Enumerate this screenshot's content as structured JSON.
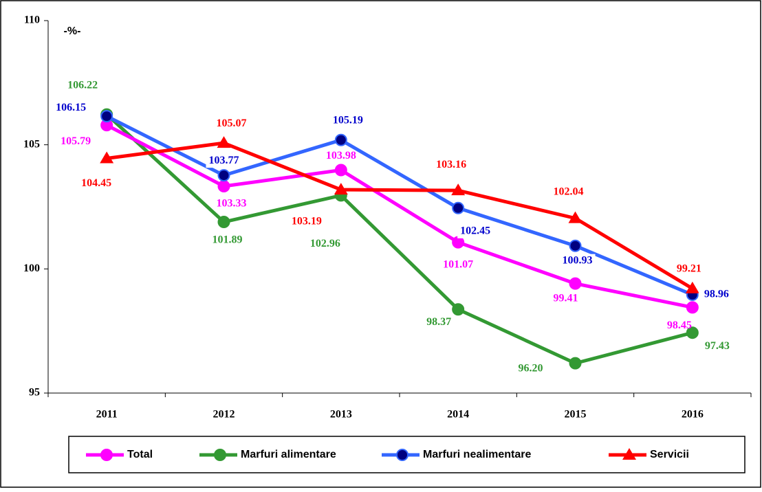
{
  "chart_data": {
    "type": "line",
    "unit_label": "-%-",
    "categories": [
      "2011",
      "2012",
      "2013",
      "2014",
      "2015",
      "2016"
    ],
    "ylim": [
      95,
      110
    ],
    "yticks": [
      95,
      100,
      105,
      110
    ],
    "series": [
      {
        "name": "Total",
        "color": "#ff00ff",
        "marker_color": "#ff00ff",
        "marker": "circle",
        "values": [
          105.79,
          103.33,
          103.98,
          101.07,
          99.41,
          98.45
        ],
        "value_labels": [
          "105.79",
          "103.33",
          "103.98",
          "101.07",
          "99.41",
          "98.45"
        ]
      },
      {
        "name": "Marfuri alimentare",
        "color": "#339933",
        "marker_color": "#339933",
        "marker": "circle",
        "values": [
          106.22,
          101.89,
          102.96,
          98.37,
          96.2,
          97.43
        ],
        "value_labels": [
          "106.22",
          "101.89",
          "102.96",
          "98.37",
          "96.20",
          "97.43"
        ]
      },
      {
        "name": "Marfuri nealimentare",
        "color": "#3366ff",
        "marker_color": "#000080",
        "marker": "circle",
        "values": [
          106.15,
          103.77,
          105.19,
          102.45,
          100.93,
          98.96
        ],
        "value_labels": [
          "106.15",
          "103.77",
          "105.19",
          "102.45",
          "100.93",
          "98.96"
        ]
      },
      {
        "name": "Servicii",
        "color": "#ff0000",
        "marker_color": "#ff0000",
        "marker": "triangle",
        "values": [
          104.45,
          105.07,
          103.19,
          103.16,
          102.04,
          99.21
        ],
        "value_labels": [
          "104.45",
          "105.07",
          "103.19",
          "103.16",
          "102.04",
          "99.21"
        ]
      }
    ]
  }
}
